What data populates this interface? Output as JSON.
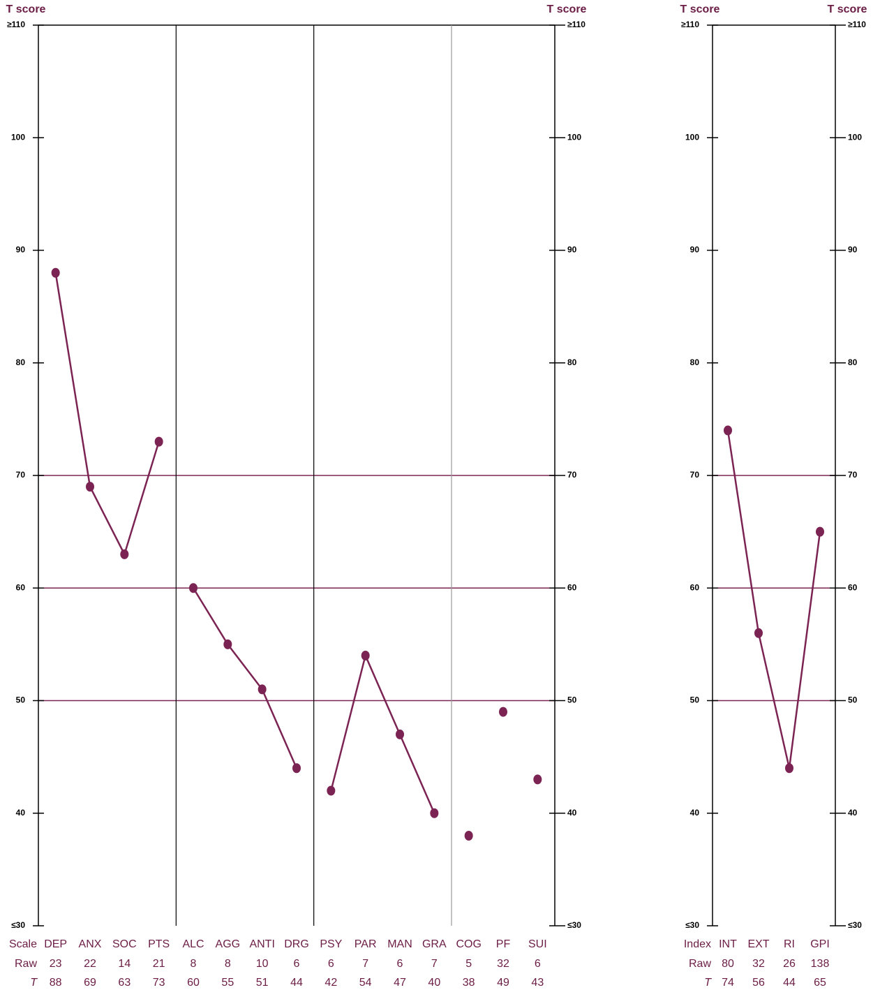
{
  "chart_data": [
    {
      "type": "line",
      "y_label": "T score",
      "color": "#7b2352",
      "row_labels": [
        "Scale",
        "Raw",
        "T"
      ],
      "categories": [
        "DEP",
        "ANX",
        "SOC",
        "PTS",
        "ALC",
        "AGG",
        "ANTI",
        "DRG",
        "PSY",
        "PAR",
        "MAN",
        "GRA",
        "COG",
        "PF",
        "SUI"
      ],
      "values": [
        88,
        69,
        63,
        73,
        60,
        55,
        51,
        44,
        42,
        54,
        47,
        40,
        38,
        49,
        43
      ],
      "raw": [
        23,
        22,
        14,
        21,
        8,
        8,
        10,
        6,
        6,
        7,
        6,
        7,
        5,
        32,
        6
      ],
      "groups": [
        {
          "size": 4,
          "connected": true
        },
        {
          "size": 4,
          "connected": true
        },
        {
          "size": 4,
          "connected": true
        },
        {
          "size": 3,
          "connected": false
        }
      ],
      "divider_colors": [
        "#000000",
        "#000000",
        "#999999"
      ],
      "reference_lines": [
        50,
        60,
        70
      ],
      "ylim": [
        30,
        110
      ],
      "yticks": [
        {
          "value": 30,
          "label": "≤30"
        },
        40,
        50,
        60,
        70,
        80,
        90,
        100,
        {
          "value": 110,
          "label": "≥110"
        }
      ]
    },
    {
      "type": "line",
      "y_label": "T score",
      "color": "#7b2352",
      "row_labels": [
        "Index",
        "Raw",
        "T"
      ],
      "categories": [
        "INT",
        "EXT",
        "RI",
        "GPI"
      ],
      "values": [
        74,
        56,
        44,
        65
      ],
      "raw": [
        80,
        32,
        26,
        138
      ],
      "groups": [
        {
          "size": 4,
          "connected": true
        }
      ],
      "divider_colors": [],
      "reference_lines": [
        50,
        60,
        70
      ],
      "ylim": [
        30,
        110
      ],
      "yticks": [
        {
          "value": 30,
          "label": "≤30"
        },
        40,
        50,
        60,
        70,
        80,
        90,
        100,
        {
          "value": 110,
          "label": "≥110"
        }
      ]
    }
  ]
}
